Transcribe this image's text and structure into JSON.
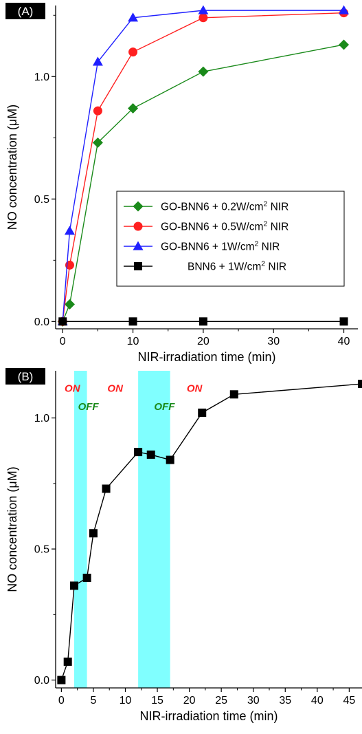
{
  "chart_data": [
    {
      "type": "line",
      "panel_label": "(A)",
      "xlabel": "NIR-irradiation time (min)",
      "ylabel": "NO concentration (μM)",
      "xlim": [
        -1,
        42
      ],
      "ylim": [
        -0.03,
        1.29
      ],
      "xticks": [
        0,
        10,
        20,
        30,
        40
      ],
      "yticks": [
        0.0,
        0.5,
        1.0
      ],
      "ytick_labels": [
        "0.0",
        "0.5",
        "1.0"
      ],
      "legend_position": "center-right",
      "series": [
        {
          "name": "GO-BNN6 + 0.2W/cm² NIR",
          "color": "#1a8a1a",
          "marker": "diamond",
          "x": [
            0,
            1,
            5,
            10,
            20,
            40
          ],
          "y": [
            0.0,
            0.07,
            0.73,
            0.87,
            1.02,
            1.13
          ]
        },
        {
          "name": "GO-BNN6 + 0.5W/cm² NIR",
          "color": "#ff2020",
          "marker": "circle",
          "x": [
            0,
            1,
            5,
            10,
            20,
            40
          ],
          "y": [
            0.0,
            0.23,
            0.86,
            1.1,
            1.24,
            1.26
          ]
        },
        {
          "name": "GO-BNN6 + 1W/cm² NIR",
          "color": "#2020ff",
          "marker": "triangle",
          "x": [
            0,
            1,
            5,
            10,
            20,
            40
          ],
          "y": [
            0.0,
            0.37,
            1.06,
            1.24,
            1.27,
            1.27
          ]
        },
        {
          "name": "BNN6 + 1W/cm² NIR",
          "color": "#000000",
          "marker": "square",
          "x": [
            0,
            10,
            20,
            40
          ],
          "y": [
            0.0,
            0.0,
            0.0,
            0.0
          ]
        }
      ]
    },
    {
      "type": "line",
      "panel_label": "(B)",
      "xlabel": "NIR-irradiation time (min)",
      "ylabel": "NO concentration (μM)",
      "xlim": [
        -0.9,
        47
      ],
      "ylim": [
        -0.03,
        1.18
      ],
      "xticks": [
        0,
        5,
        10,
        15,
        20,
        25,
        30,
        35,
        40,
        45
      ],
      "yticks": [
        0.0,
        0.5,
        1.0
      ],
      "ytick_labels": [
        "0.0",
        "0.5",
        "1.0"
      ],
      "off_intervals": [
        [
          2,
          4
        ],
        [
          12,
          17
        ]
      ],
      "off_color": "#80ffff",
      "annotations": [
        {
          "text": "ON",
          "x": 0.5,
          "y": 1.1,
          "color": "#ff2020"
        },
        {
          "text": "OFF",
          "x": 2.6,
          "y": 1.03,
          "color": "#1a8a1a"
        },
        {
          "text": "ON",
          "x": 7.2,
          "y": 1.1,
          "color": "#ff2020"
        },
        {
          "text": "OFF",
          "x": 14.5,
          "y": 1.03,
          "color": "#1a8a1a"
        },
        {
          "text": "ON",
          "x": 19.6,
          "y": 1.1,
          "color": "#ff2020"
        }
      ],
      "series": [
        {
          "color": "#000000",
          "marker": "square",
          "x": [
            0,
            1,
            2,
            4,
            5,
            7,
            12,
            14,
            17,
            22,
            27,
            47
          ],
          "y": [
            0.0,
            0.07,
            0.36,
            0.39,
            0.56,
            0.73,
            0.87,
            0.86,
            0.84,
            1.02,
            1.09,
            1.13
          ]
        }
      ]
    }
  ]
}
